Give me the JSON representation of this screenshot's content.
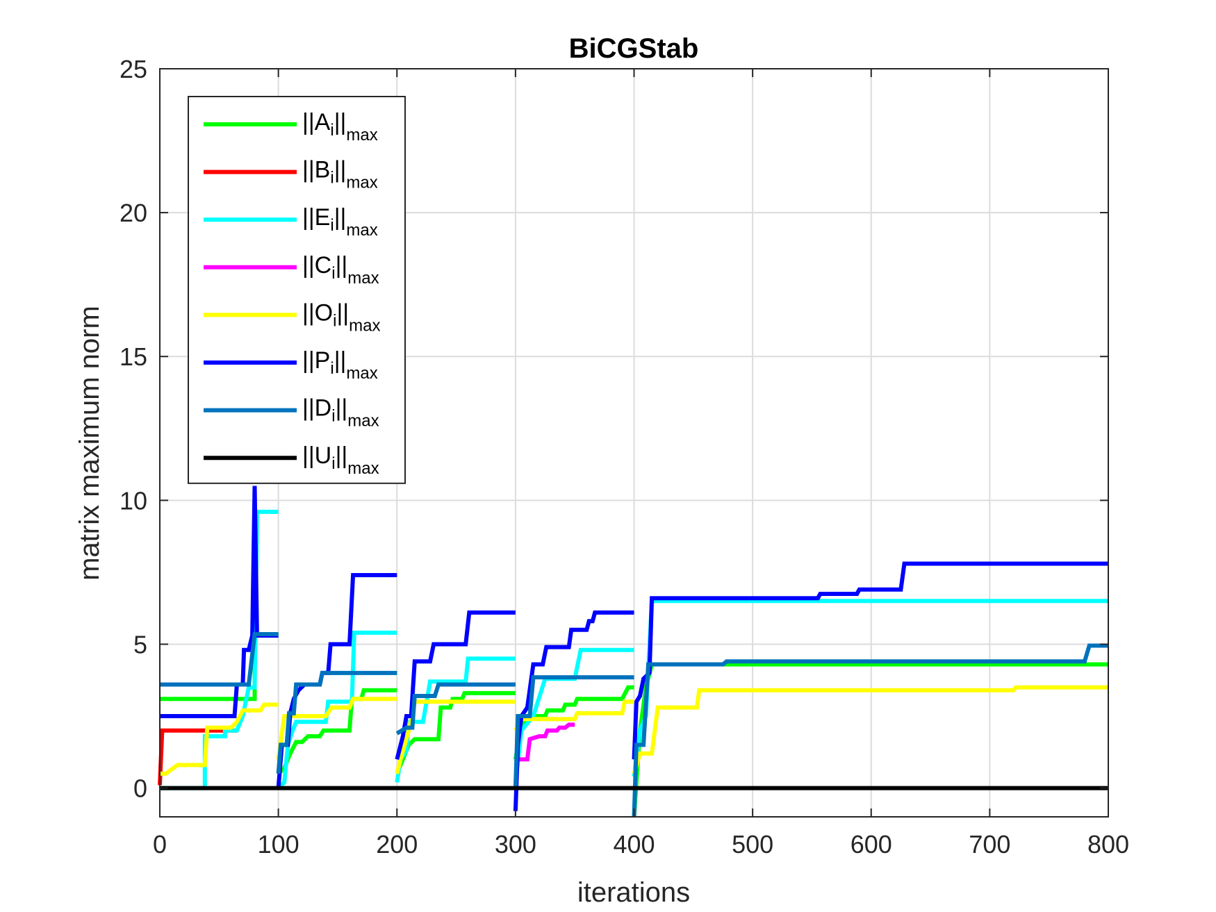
{
  "chart_data": {
    "type": "line",
    "title": "BiCGStab",
    "xlabel": "iterations",
    "ylabel": "matrix maximum norm",
    "xlim": [
      0,
      800
    ],
    "ylim": [
      -1,
      25
    ],
    "xticks": [
      "0",
      "100",
      "200",
      "300",
      "400",
      "500",
      "600",
      "700",
      "800"
    ],
    "yticks": [
      "0",
      "5",
      "10",
      "15",
      "20",
      "25"
    ],
    "grid": true,
    "legend_position": "top-left",
    "series": [
      {
        "name": "||A_i||_max",
        "main": "A",
        "label_prefix": "||",
        "label_suffix": "||",
        "sub1": "i",
        "sub2": "max",
        "color": "#00ff00",
        "segments": [
          [
            [
              0,
              3.1
            ],
            [
              80,
              3.1
            ],
            [
              80,
              5.3
            ],
            [
              100,
              5.3
            ]
          ],
          [
            [
              100,
              0.5
            ],
            [
              105,
              0.7
            ],
            [
              110,
              1.2
            ],
            [
              115,
              1.6
            ],
            [
              120,
              1.6
            ],
            [
              125,
              1.8
            ],
            [
              135,
              1.8
            ],
            [
              138,
              2.0
            ],
            [
              160,
              2.0
            ],
            [
              162,
              3.1
            ],
            [
              170,
              3.1
            ],
            [
              172,
              3.4
            ],
            [
              200,
              3.4
            ]
          ],
          [
            [
              200,
              0.5
            ],
            [
              205,
              1.0
            ],
            [
              210,
              1.5
            ],
            [
              215,
              1.7
            ],
            [
              235,
              1.7
            ],
            [
              237,
              2.8
            ],
            [
              245,
              2.8
            ],
            [
              247,
              3.1
            ],
            [
              255,
              3.1
            ],
            [
              257,
              3.3
            ],
            [
              300,
              3.3
            ]
          ],
          [
            [
              300,
              1.0
            ],
            [
              305,
              2.2
            ],
            [
              315,
              2.5
            ],
            [
              325,
              2.5
            ],
            [
              327,
              2.7
            ],
            [
              340,
              2.7
            ],
            [
              342,
              2.9
            ],
            [
              350,
              2.9
            ],
            [
              352,
              3.1
            ],
            [
              390,
              3.1
            ],
            [
              395,
              3.5
            ],
            [
              400,
              3.5
            ]
          ],
          [
            [
              400,
              -1.0
            ],
            [
              405,
              2.0
            ],
            [
              410,
              3.5
            ],
            [
              415,
              4.3
            ],
            [
              800,
              4.3
            ]
          ]
        ]
      },
      {
        "name": "||B_i||_max",
        "main": "B",
        "label_prefix": "||",
        "label_suffix": "||",
        "sub1": "i",
        "sub2": "max",
        "color": "#ff0000",
        "segments": [
          [
            [
              0,
              0.1
            ],
            [
              2,
              2.0
            ],
            [
              65,
              2.0
            ]
          ]
        ]
      },
      {
        "name": "||E_i||_max",
        "main": "E",
        "label_prefix": "||",
        "label_suffix": "||",
        "sub1": "i",
        "sub2": "max",
        "color": "#00ffff",
        "segments": [
          [
            [
              0,
              0
            ],
            [
              38,
              0
            ],
            [
              38,
              1.8
            ],
            [
              55,
              1.8
            ],
            [
              55,
              2.0
            ],
            [
              65,
              2.0
            ],
            [
              70,
              2.5
            ],
            [
              75,
              3.5
            ],
            [
              80,
              3.5
            ],
            [
              82,
              9.6
            ],
            [
              100,
              9.6
            ]
          ],
          [
            [
              100,
              0
            ],
            [
              105,
              0.2
            ],
            [
              108,
              1.5
            ],
            [
              112,
              2.0
            ],
            [
              115,
              2.3
            ],
            [
              140,
              2.3
            ],
            [
              142,
              3.0
            ],
            [
              150,
              3.0
            ],
            [
              162,
              3.0
            ],
            [
              164,
              5.4
            ],
            [
              200,
              5.4
            ]
          ],
          [
            [
              200,
              0.2
            ],
            [
              203,
              1.0
            ],
            [
              208,
              1.3
            ],
            [
              210,
              2.3
            ],
            [
              222,
              2.3
            ],
            [
              228,
              3.7
            ],
            [
              258,
              3.7
            ],
            [
              260,
              4.5
            ],
            [
              300,
              4.5
            ]
          ],
          [
            [
              300,
              0.2
            ],
            [
              305,
              2.0
            ],
            [
              315,
              2.5
            ],
            [
              325,
              3.8
            ],
            [
              350,
              3.8
            ],
            [
              355,
              4.8
            ],
            [
              400,
              4.8
            ]
          ],
          [
            [
              400,
              0.4
            ],
            [
              405,
              2.0
            ],
            [
              410,
              2.5
            ],
            [
              415,
              6.5
            ],
            [
              800,
              6.5
            ]
          ]
        ]
      },
      {
        "name": "||C_i||_max",
        "main": "C",
        "label_prefix": "||",
        "label_suffix": "||",
        "sub1": "i",
        "sub2": "max",
        "color": "#ff00ff",
        "segments": [
          [
            [
              300,
              1.0
            ],
            [
              310,
              1.0
            ],
            [
              312,
              1.7
            ],
            [
              320,
              1.8
            ],
            [
              325,
              1.8
            ],
            [
              327,
              2.0
            ],
            [
              335,
              2.0
            ],
            [
              337,
              2.1
            ],
            [
              342,
              2.1
            ],
            [
              345,
              2.2
            ],
            [
              350,
              2.2
            ]
          ]
        ]
      },
      {
        "name": "||O_i||_max",
        "main": "O",
        "label_prefix": "||",
        "label_suffix": "||",
        "sub1": "i",
        "sub2": "max",
        "color": "#ffff00",
        "segments": [
          [
            [
              0,
              0.5
            ],
            [
              5,
              0.5
            ],
            [
              15,
              0.8
            ],
            [
              38,
              0.8
            ],
            [
              40,
              2.1
            ],
            [
              60,
              2.1
            ],
            [
              65,
              2.3
            ],
            [
              70,
              2.7
            ],
            [
              85,
              2.7
            ],
            [
              88,
              2.9
            ],
            [
              100,
              2.9
            ]
          ],
          [
            [
              100,
              1.0
            ],
            [
              105,
              2.5
            ],
            [
              140,
              2.5
            ],
            [
              145,
              2.8
            ],
            [
              160,
              2.8
            ],
            [
              163,
              3.1
            ],
            [
              200,
              3.1
            ]
          ],
          [
            [
              200,
              0.5
            ],
            [
              203,
              1.0
            ],
            [
              210,
              2.0
            ],
            [
              215,
              3.0
            ],
            [
              300,
              3.0
            ]
          ],
          [
            [
              300,
              2.0
            ],
            [
              305,
              2.4
            ],
            [
              350,
              2.4
            ],
            [
              352,
              2.6
            ],
            [
              390,
              2.6
            ],
            [
              392,
              3.0
            ],
            [
              400,
              3.0
            ]
          ],
          [
            [
              400,
              0.5
            ],
            [
              405,
              1.2
            ],
            [
              415,
              1.2
            ],
            [
              420,
              2.8
            ],
            [
              453,
              2.8
            ],
            [
              455,
              3.4
            ],
            [
              720,
              3.4
            ],
            [
              722,
              3.5
            ],
            [
              800,
              3.5
            ]
          ]
        ]
      },
      {
        "name": "||P_i||_max",
        "main": "P",
        "label_prefix": "||",
        "label_suffix": "||",
        "sub1": "i",
        "sub2": "max",
        "color": "#0000ff",
        "segments": [
          [
            [
              0,
              2.5
            ],
            [
              63,
              2.5
            ],
            [
              65,
              3.6
            ],
            [
              70,
              3.6
            ],
            [
              71,
              4.8
            ],
            [
              75,
              4.8
            ],
            [
              78,
              5.3
            ],
            [
              80,
              10.5
            ],
            [
              82,
              5.3
            ],
            [
              100,
              5.3
            ]
          ],
          [
            [
              100,
              0
            ],
            [
              103,
              1.5
            ],
            [
              108,
              1.5
            ],
            [
              110,
              2.6
            ],
            [
              113,
              3.1
            ],
            [
              117,
              3.4
            ],
            [
              122,
              3.6
            ],
            [
              135,
              3.6
            ],
            [
              137,
              4.0
            ],
            [
              142,
              4.0
            ],
            [
              144,
              5.0
            ],
            [
              160,
              5.0
            ],
            [
              163,
              7.4
            ],
            [
              200,
              7.4
            ]
          ],
          [
            [
              200,
              1.0
            ],
            [
              205,
              1.8
            ],
            [
              208,
              2.5
            ],
            [
              212,
              2.5
            ],
            [
              215,
              4.4
            ],
            [
              228,
              4.4
            ],
            [
              231,
              5.0
            ],
            [
              258,
              5.0
            ],
            [
              261,
              6.1
            ],
            [
              300,
              6.1
            ]
          ],
          [
            [
              300,
              -0.8
            ],
            [
              302,
              1.5
            ],
            [
              305,
              2.5
            ],
            [
              310,
              2.8
            ],
            [
              315,
              4.3
            ],
            [
              323,
              4.3
            ],
            [
              326,
              4.9
            ],
            [
              345,
              4.9
            ],
            [
              347,
              5.5
            ],
            [
              360,
              5.5
            ],
            [
              362,
              5.8
            ],
            [
              365,
              5.8
            ],
            [
              367,
              6.1
            ],
            [
              400,
              6.1
            ]
          ],
          [
            [
              400,
              1.0
            ],
            [
              402,
              3.0
            ],
            [
              405,
              3.2
            ],
            [
              408,
              3.8
            ],
            [
              413,
              4.0
            ],
            [
              415,
              6.6
            ],
            [
              555,
              6.6
            ],
            [
              557,
              6.75
            ],
            [
              588,
              6.75
            ],
            [
              590,
              6.9
            ],
            [
              625,
              6.9
            ],
            [
              628,
              7.8
            ],
            [
              800,
              7.8
            ]
          ]
        ]
      },
      {
        "name": "||D_i||_max",
        "main": "D",
        "label_prefix": "||",
        "label_suffix": "||",
        "sub1": "i",
        "sub2": "max",
        "color": "#0072bd",
        "segments": [
          [
            [
              0,
              3.6
            ],
            [
              75,
              3.6
            ],
            [
              80,
              5.35
            ],
            [
              100,
              5.35
            ]
          ],
          [
            [
              100,
              0.5
            ],
            [
              102,
              1.5
            ],
            [
              107,
              1.5
            ],
            [
              109,
              2.6
            ],
            [
              113,
              2.6
            ],
            [
              115,
              3.6
            ],
            [
              135,
              3.6
            ],
            [
              137,
              4.0
            ],
            [
              200,
              4.0
            ]
          ],
          [
            [
              200,
              1.9
            ],
            [
              208,
              2.1
            ],
            [
              213,
              2.1
            ],
            [
              215,
              3.2
            ],
            [
              232,
              3.2
            ],
            [
              235,
              3.6
            ],
            [
              300,
              3.6
            ]
          ],
          [
            [
              300,
              0
            ],
            [
              302,
              2.5
            ],
            [
              312,
              2.5
            ],
            [
              315,
              3.85
            ],
            [
              400,
              3.85
            ]
          ],
          [
            [
              400,
              -1.0
            ],
            [
              402,
              1.5
            ],
            [
              408,
              1.5
            ],
            [
              412,
              4.3
            ],
            [
              475,
              4.3
            ],
            [
              478,
              4.4
            ],
            [
              780,
              4.4
            ],
            [
              784,
              4.95
            ],
            [
              800,
              4.95
            ]
          ]
        ]
      },
      {
        "name": "||U_i||_max",
        "main": "U",
        "label_prefix": "||",
        "label_suffix": "||",
        "sub1": "i",
        "sub2": "max",
        "color": "#000000",
        "segments": [
          [
            [
              0,
              0
            ],
            [
              800,
              0
            ]
          ]
        ]
      }
    ]
  }
}
